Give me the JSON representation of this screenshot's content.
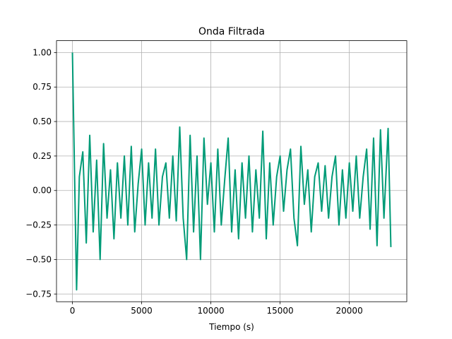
{
  "chart_data": {
    "type": "line",
    "title": "Onda Filtrada",
    "xlabel": "Tiempo (s)",
    "x": [
      0,
      300,
      500,
      750,
      1000,
      1250,
      1500,
      1750,
      2000,
      2250,
      2500,
      2750,
      3000,
      3250,
      3500,
      3750,
      4000,
      4250,
      4500,
      4750,
      5000,
      5250,
      5500,
      5750,
      6000,
      6250,
      6500,
      6750,
      7000,
      7250,
      7500,
      7750,
      8000,
      8250,
      8500,
      8750,
      9000,
      9250,
      9500,
      9750,
      10000,
      10250,
      10500,
      10750,
      11000,
      11250,
      11500,
      11750,
      12000,
      12250,
      12500,
      12750,
      13000,
      13250,
      13500,
      13750,
      14000,
      14250,
      14500,
      14750,
      15000,
      15250,
      15500,
      15750,
      16000,
      16250,
      16500,
      16750,
      17000,
      17250,
      17500,
      17750,
      18000,
      18250,
      18500,
      18750,
      19000,
      19250,
      19500,
      19750,
      20000,
      20250,
      20500,
      20750,
      21000,
      21250,
      21500,
      21750,
      22000,
      22250,
      22500,
      22800,
      23000
    ],
    "series": [
      {
        "color": "#009b77",
        "values": [
          1.0,
          -0.72,
          0.1,
          0.28,
          -0.38,
          0.4,
          -0.3,
          0.22,
          -0.5,
          0.34,
          -0.2,
          0.15,
          -0.35,
          0.2,
          -0.2,
          0.25,
          -0.25,
          0.32,
          -0.3,
          0.05,
          0.3,
          -0.25,
          0.2,
          -0.2,
          0.3,
          -0.25,
          0.1,
          0.2,
          -0.2,
          0.25,
          -0.22,
          0.46,
          -0.2,
          -0.5,
          0.4,
          -0.3,
          0.25,
          -0.5,
          0.38,
          -0.1,
          0.2,
          -0.3,
          0.3,
          -0.25,
          0.08,
          0.38,
          -0.3,
          0.15,
          -0.35,
          0.2,
          -0.2,
          0.25,
          -0.3,
          0.15,
          -0.2,
          0.43,
          -0.35,
          0.2,
          -0.25,
          0.1,
          0.25,
          -0.15,
          0.15,
          0.3,
          -0.2,
          -0.4,
          0.32,
          -0.1,
          0.15,
          -0.3,
          0.1,
          0.2,
          -0.15,
          0.18,
          -0.2,
          0.1,
          0.25,
          -0.25,
          0.15,
          -0.2,
          0.2,
          -0.15,
          0.25,
          -0.2,
          0.1,
          0.3,
          -0.28,
          0.38,
          -0.4,
          0.44,
          -0.2,
          0.45,
          -0.41
        ]
      }
    ],
    "xlim": [
      -1150,
      24150
    ],
    "ylim": [
      -0.806,
      1.086
    ],
    "xticks": [
      0,
      5000,
      10000,
      15000,
      20000
    ],
    "yticks": [
      {
        "value": 1,
        "label": "1.00"
      },
      {
        "value": 0.75,
        "label": "0.75"
      },
      {
        "value": 0.5,
        "label": "0.50"
      },
      {
        "value": 0.25,
        "label": "0.25"
      },
      {
        "value": 0,
        "label": "0.00"
      },
      {
        "value": -0.25,
        "label": "−0.25"
      },
      {
        "value": -0.5,
        "label": "−0.50"
      },
      {
        "value": -0.75,
        "label": "−0.75"
      }
    ],
    "grid": true
  }
}
